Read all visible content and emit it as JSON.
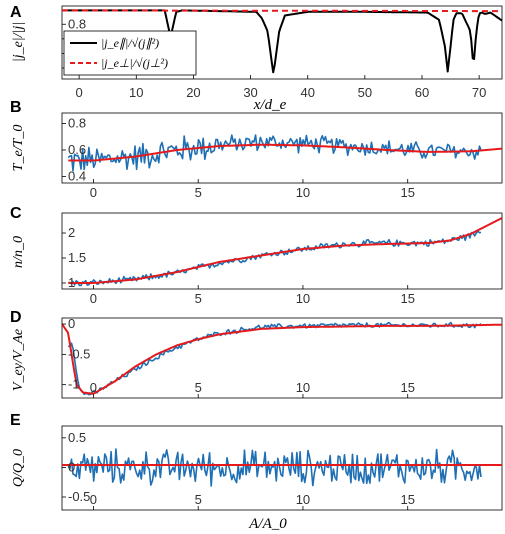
{
  "chart_data": [
    {
      "panel": "A",
      "type": "line",
      "ylabel": "|j_e|/|j|",
      "xlabel": "x/d_e",
      "xlim": [
        -3,
        74
      ],
      "ylim": [
        0.05,
        1.05
      ],
      "xticks": [
        0,
        10,
        20,
        30,
        40,
        50,
        60,
        70
      ],
      "yticks": [
        0.2,
        0.4,
        0.6,
        0.8
      ],
      "legend_position": "top-left",
      "series": [
        {
          "name": "|j_e∥|/√(j∥²)",
          "color": "#000000",
          "style": "solid",
          "x": [
            -3,
            15,
            15.5,
            16,
            16.5,
            17,
            18,
            31,
            32,
            33,
            33.5,
            34,
            34.5,
            35,
            36,
            40,
            46,
            50,
            61,
            63,
            64,
            64.5,
            65,
            65.5,
            66,
            67,
            68.5,
            69,
            69.5,
            70,
            70.5,
            71,
            72,
            74
          ],
          "values": [
            0.99,
            0.99,
            0.8,
            0.62,
            0.8,
            0.97,
            0.99,
            0.97,
            0.88,
            0.7,
            0.4,
            0.12,
            0.4,
            0.7,
            0.92,
            0.97,
            0.97,
            0.97,
            0.96,
            0.86,
            0.5,
            0.15,
            0.5,
            0.86,
            0.95,
            0.95,
            0.7,
            0.2,
            0.7,
            0.95,
            0.96,
            0.94,
            0.96,
            0.85
          ]
        },
        {
          "name": "|j_e⊥|/√(j⊥²)",
          "color": "#e41a1c",
          "style": "dashed",
          "x": [
            -3,
            74
          ],
          "values": [
            0.99,
            0.98
          ]
        }
      ]
    },
    {
      "panel": "B",
      "type": "line",
      "ylabel": "T_e/T_0",
      "xlim": [
        -1.5,
        19.5
      ],
      "ylim": [
        0.35,
        0.88
      ],
      "yticks": [
        0.4,
        0.6,
        0.8
      ],
      "series": [
        {
          "name": "",
          "color": "#1f6fb4",
          "noise_amp": 0.08,
          "x": [
            -1.2,
            0,
            2,
            4,
            6,
            8,
            10,
            12,
            14,
            16,
            18.5
          ],
          "values": [
            0.52,
            0.52,
            0.55,
            0.6,
            0.64,
            0.66,
            0.65,
            0.63,
            0.61,
            0.59,
            0.59
          ]
        },
        {
          "name": "",
          "color": "#e41a1c",
          "x": [
            -1.2,
            0,
            2,
            4,
            6,
            8,
            10,
            12,
            14,
            16,
            18,
            19.5
          ],
          "values": [
            0.52,
            0.52,
            0.55,
            0.6,
            0.63,
            0.64,
            0.635,
            0.62,
            0.6,
            0.585,
            0.59,
            0.61
          ]
        }
      ]
    },
    {
      "panel": "C",
      "type": "line",
      "ylabel": "n/n_0",
      "xlim": [
        -1.5,
        19.5
      ],
      "ylim": [
        0.88,
        2.4
      ],
      "yticks": [
        1,
        1.5,
        2
      ],
      "series": [
        {
          "name": "",
          "color": "#1f6fb4",
          "noise_amp": 0.08,
          "x": [
            -1.2,
            0,
            2,
            4,
            6,
            8,
            10,
            12,
            14,
            16,
            17,
            18,
            18.5
          ],
          "values": [
            1.0,
            1.0,
            1.07,
            1.2,
            1.4,
            1.55,
            1.68,
            1.78,
            1.8,
            1.8,
            1.85,
            1.95,
            2.05
          ]
        },
        {
          "name": "",
          "color": "#e41a1c",
          "x": [
            -1.2,
            0,
            2,
            4,
            6,
            8,
            10,
            12,
            14,
            16,
            17,
            18,
            19.5
          ],
          "values": [
            1.0,
            1.0,
            1.07,
            1.22,
            1.42,
            1.55,
            1.68,
            1.75,
            1.78,
            1.8,
            1.85,
            1.98,
            2.3
          ]
        }
      ]
    },
    {
      "panel": "D",
      "type": "line",
      "ylabel": "V_ey/V_Ae",
      "xlim": [
        -1.5,
        19.5
      ],
      "ylim": [
        -1.22,
        0.1
      ],
      "yticks": [
        -1,
        -0.5,
        0
      ],
      "series": [
        {
          "name": "",
          "color": "#1f6fb4",
          "noise_amp": 0.05,
          "x": [
            -1.2,
            -1.0,
            -0.8,
            -0.7,
            -0.6,
            -0.4,
            0,
            1,
            2,
            3,
            4,
            5,
            6,
            8,
            10,
            12,
            14,
            16,
            18.5
          ],
          "values": [
            -0.35,
            -0.3,
            -0.8,
            -1.05,
            -1.1,
            -1.15,
            -1.15,
            -0.95,
            -0.75,
            -0.55,
            -0.38,
            -0.25,
            -0.15,
            -0.05,
            -0.03,
            -0.02,
            -0.02,
            -0.02,
            -0.02
          ]
        },
        {
          "name": "",
          "color": "#e41a1c",
          "x": [
            -1.5,
            -1.2,
            -1.0,
            -0.8,
            -0.5,
            0,
            1,
            2,
            3,
            4,
            5,
            6,
            8,
            10,
            12,
            14,
            16,
            18,
            19.5
          ],
          "values": [
            0.0,
            -0.15,
            -0.6,
            -1.0,
            -1.13,
            -1.15,
            -0.95,
            -0.7,
            -0.5,
            -0.35,
            -0.25,
            -0.17,
            -0.08,
            -0.05,
            -0.04,
            -0.03,
            -0.03,
            -0.02,
            -0.01
          ]
        }
      ]
    },
    {
      "panel": "E",
      "type": "line",
      "ylabel": "Q/Q_0",
      "xlabel": "A/A_0",
      "xlim": [
        -1.5,
        19.5
      ],
      "ylim": [
        -0.72,
        0.7
      ],
      "xticks": [
        0,
        5,
        10,
        15
      ],
      "yticks": [
        -0.5,
        0,
        0.5
      ],
      "series": [
        {
          "name": "",
          "color": "#1f6fb4",
          "noise_amp": 0.35,
          "x": [
            -1.2,
            18.5
          ],
          "values": [
            0.0,
            0.0
          ]
        },
        {
          "name": "",
          "color": "#e41a1c",
          "x": [
            -1.5,
            19.5
          ],
          "values": [
            0.04,
            0.04
          ]
        }
      ]
    }
  ]
}
